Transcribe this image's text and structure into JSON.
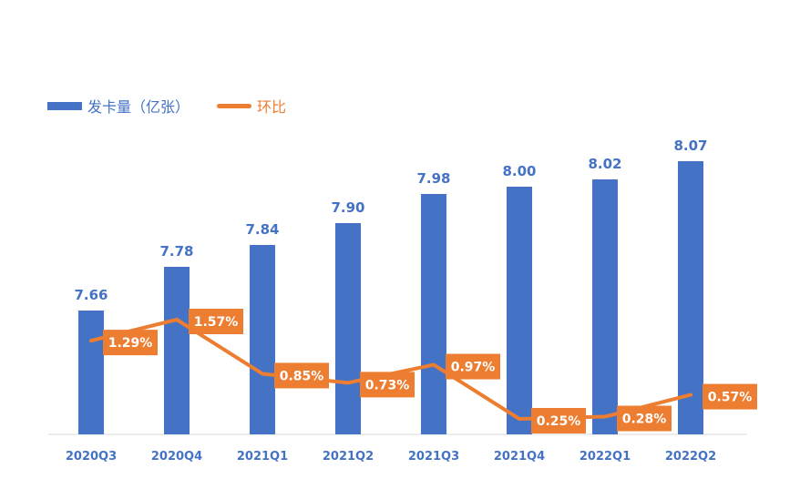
{
  "chart_data": {
    "type": "bar",
    "categories": [
      "2020Q3",
      "2020Q4",
      "2021Q1",
      "2021Q2",
      "2021Q3",
      "2021Q4",
      "2022Q1",
      "2022Q2"
    ],
    "series": [
      {
        "name": "发卡量（亿张）",
        "type": "bar",
        "color": "#4472C4",
        "values": [
          7.66,
          7.78,
          7.84,
          7.9,
          7.98,
          8.0,
          8.02,
          8.07
        ],
        "labels": [
          "7.66",
          "7.78",
          "7.84",
          "7.90",
          "7.98",
          "8.00",
          "8.02",
          "8.07"
        ]
      },
      {
        "name": "环比",
        "type": "line",
        "color": "#ED7D31",
        "values": [
          1.29,
          1.57,
          0.85,
          0.73,
          0.97,
          0.25,
          0.28,
          0.57
        ],
        "labels": [
          "1.29%",
          "1.57%",
          "0.85%",
          "0.73%",
          "0.97%",
          "0.25%",
          "0.28%",
          "0.57%"
        ]
      }
    ],
    "legend": "top-left",
    "grid": false
  },
  "colors": {
    "bar": "#4472C4",
    "line": "#ED7D31",
    "axis": "#D9D9D9"
  }
}
